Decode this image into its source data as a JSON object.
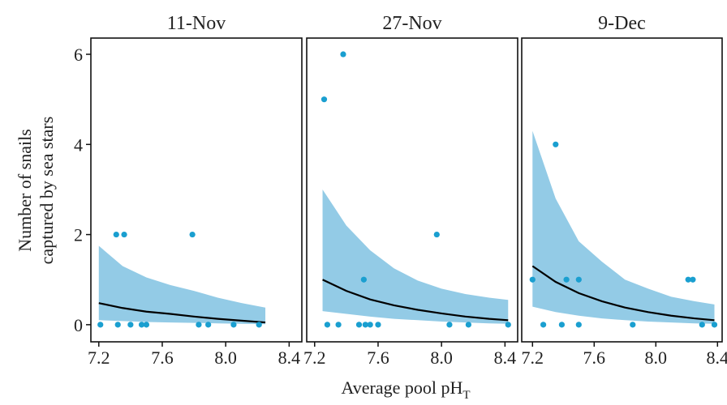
{
  "y_label": [
    "Number of snails",
    "captured by sea stars"
  ],
  "x_label": "Average pool pH",
  "x_label_subscript": "T",
  "chart_data": [
    {
      "type": "scatter",
      "title": "11-Nov",
      "point_color": "#1a9fd0",
      "band_color": "#93cbe6",
      "line_color": "#000000",
      "xlim": [
        7.15,
        8.48
      ],
      "ylim": [
        -0.38,
        6.36
      ],
      "xticks": [
        7.2,
        7.6,
        {
          "value": 8,
          "label": "8.0"
        },
        8.4
      ],
      "yticks": [
        0,
        2,
        4,
        6
      ],
      "x": [
        7.21,
        7.32,
        7.4,
        7.47,
        7.5,
        7.83,
        7.89,
        8.05,
        8.21,
        7.31,
        7.36,
        7.79
      ],
      "values": [
        0,
        0,
        0,
        0,
        0,
        0,
        0,
        0,
        0,
        2,
        2,
        2
      ],
      "fit": {
        "x": [
          7.2,
          7.35,
          7.5,
          7.65,
          7.8,
          7.95,
          8.1,
          8.25
        ],
        "values": [
          0.48,
          0.37,
          0.29,
          0.24,
          0.18,
          0.13,
          0.09,
          0.05
        ],
        "lower": [
          0.1,
          0.08,
          0.06,
          0.05,
          0.04,
          0.03,
          0.02,
          0.01
        ],
        "upper": [
          1.75,
          1.3,
          1.05,
          0.88,
          0.75,
          0.6,
          0.48,
          0.38
        ]
      }
    },
    {
      "type": "scatter",
      "title": "27-Nov",
      "point_color": "#1a9fd0",
      "band_color": "#93cbe6",
      "line_color": "#000000",
      "xlim": [
        7.15,
        8.48
      ],
      "ylim": [
        -0.38,
        6.36
      ],
      "xticks": [
        7.2,
        7.6,
        {
          "value": 8,
          "label": "8.0"
        },
        8.4
      ],
      "x": [
        7.26,
        7.38,
        7.51,
        7.97,
        7.28,
        7.35,
        7.48,
        7.52,
        7.55,
        7.6,
        8.05,
        8.17,
        8.42
      ],
      "values": [
        5,
        6,
        1,
        2,
        0,
        0,
        0,
        0,
        0,
        0,
        0,
        0,
        0
      ],
      "fit": {
        "x": [
          7.25,
          7.4,
          7.55,
          7.7,
          7.85,
          8.0,
          8.15,
          8.3,
          8.42
        ],
        "values": [
          1.0,
          0.75,
          0.56,
          0.43,
          0.33,
          0.25,
          0.18,
          0.13,
          0.1
        ],
        "lower": [
          0.3,
          0.24,
          0.18,
          0.13,
          0.1,
          0.07,
          0.05,
          0.03,
          0.02
        ],
        "upper": [
          3.0,
          2.2,
          1.65,
          1.25,
          0.98,
          0.8,
          0.68,
          0.6,
          0.55
        ]
      }
    },
    {
      "type": "scatter",
      "title": "9-Dec",
      "point_color": "#1a9fd0",
      "band_color": "#93cbe6",
      "line_color": "#000000",
      "xlim": [
        7.13,
        8.43
      ],
      "ylim": [
        -0.38,
        6.36
      ],
      "xticks": [
        7.2,
        7.6,
        {
          "value": 8,
          "label": "8.0"
        },
        8.4
      ],
      "x": [
        7.35,
        7.2,
        7.42,
        7.5,
        8.21,
        8.24,
        7.27,
        7.39,
        7.5,
        7.85,
        8.3,
        8.38
      ],
      "values": [
        4,
        1,
        1,
        1,
        1,
        1,
        0,
        0,
        0,
        0,
        0,
        0
      ],
      "fit": {
        "x": [
          7.2,
          7.35,
          7.5,
          7.65,
          7.8,
          7.95,
          8.1,
          8.25,
          8.38
        ],
        "values": [
          1.3,
          0.95,
          0.7,
          0.52,
          0.38,
          0.28,
          0.2,
          0.14,
          0.1
        ],
        "lower": [
          0.4,
          0.28,
          0.2,
          0.14,
          0.1,
          0.07,
          0.05,
          0.03,
          0.02
        ],
        "upper": [
          4.3,
          2.8,
          1.85,
          1.4,
          1.0,
          0.8,
          0.62,
          0.52,
          0.45
        ]
      }
    }
  ]
}
